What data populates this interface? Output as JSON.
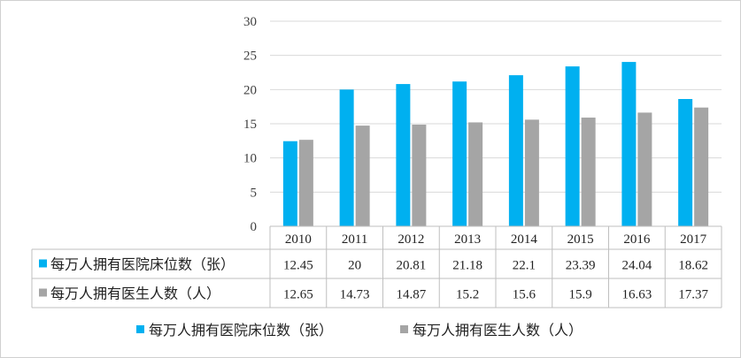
{
  "chart_data": {
    "type": "bar",
    "categories": [
      "2010",
      "2011",
      "2012",
      "2013",
      "2014",
      "2015",
      "2016",
      "2017"
    ],
    "series": [
      {
        "name": "每万人拥有医院床位数（张）",
        "color": "#00b0f0",
        "values": [
          12.45,
          20,
          20.81,
          21.18,
          22.1,
          23.39,
          24.04,
          18.62
        ]
      },
      {
        "name": "每万人拥有医生人数（人）",
        "color": "#a5a5a5",
        "values": [
          12.65,
          14.73,
          14.87,
          15.2,
          15.6,
          15.9,
          16.63,
          17.37
        ]
      }
    ],
    "ylim": [
      0,
      30
    ],
    "yticks": [
      0,
      5,
      10,
      15,
      20,
      25,
      30
    ],
    "grid": true,
    "legend_position": "bottom",
    "data_table": true
  }
}
